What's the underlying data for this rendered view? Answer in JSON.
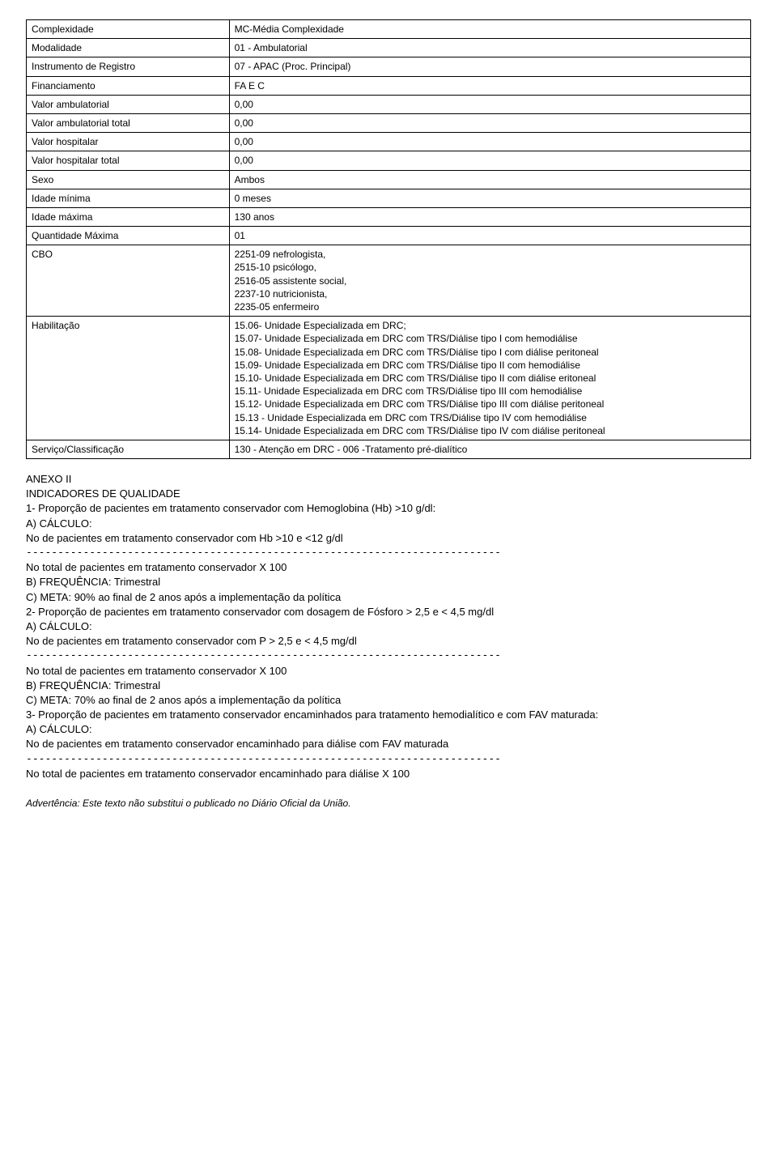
{
  "table": {
    "rows": [
      {
        "label": "Complexidade",
        "value": "MC-Média Complexidade"
      },
      {
        "label": "Modalidade",
        "value": "01 - Ambulatorial"
      },
      {
        "label": "Instrumento de Registro",
        "value": "07 - APAC (Proc. Principal)"
      },
      {
        "label": "Financiamento",
        "value": "FA E C"
      },
      {
        "label": "Valor ambulatorial",
        "value": "0,00"
      },
      {
        "label": "Valor ambulatorial total",
        "value": "0,00"
      },
      {
        "label": "Valor hospitalar",
        "value": "0,00"
      },
      {
        "label": "Valor hospitalar total",
        "value": "0,00"
      },
      {
        "label": "Sexo",
        "value": "Ambos"
      },
      {
        "label": "Idade mínima",
        "value": "0 meses"
      },
      {
        "label": "Idade máxima",
        "value": "130 anos"
      },
      {
        "label": "Quantidade Máxima",
        "value": "01"
      },
      {
        "label": "CBO",
        "value": "2251-09 nefrologista,\n2515-10 psicólogo,\n2516-05 assistente social,\n2237-10 nutricionista,\n2235-05 enfermeiro"
      },
      {
        "label": "Habilitação",
        "value": "15.06- Unidade Especializada em DRC;\n15.07- Unidade Especializada em DRC com TRS/Diálise tipo I com hemodiálise\n15.08- Unidade Especializada em DRC com TRS/Diálise tipo I com diálise peritoneal\n15.09- Unidade Especializada em DRC com TRS/Diálise tipo II com hemodiálise\n15.10- Unidade Especializada em DRC com TRS/Diálise tipo II com diálise eritoneal\n15.11- Unidade Especializada em DRC com TRS/Diálise tipo III com hemodiálise\n15.12- Unidade Especializada em DRC com TRS/Diálise tipo III com diálise peritoneal\n15.13 - Unidade Especializada em DRC com TRS/Diálise tipo IV com hemodiálise\n15.14- Unidade Especializada em DRC com TRS/Diálise tipo IV com diálise peritoneal",
        "justify": true
      },
      {
        "label": "Serviço/Classificação",
        "value": "130 - Atenção em DRC - 006 -Tratamento pré-dialítico"
      }
    ]
  },
  "body": {
    "anexo": "ANEXO II",
    "title": "INDICADORES DE QUALIDADE",
    "item1_title": "1- Proporção de pacientes em tratamento conservador com Hemoglobina (Hb) >10 g/dl:",
    "a_calc": "A) CÁLCULO:",
    "item1_num": "No de pacientes em tratamento conservador com Hb >10 e <12 g/dl",
    "dashes": "---------------------------------------------------------------------------",
    "item1_den": "No total de pacientes em tratamento conservador X 100",
    "b_freq": "B) FREQUÊNCIA: Trimestral",
    "item1_meta": "C) META: 90% ao final de 2 anos após a implementação da política",
    "item2_title": "2- Proporção de pacientes em tratamento conservador com dosagem de Fósforo > 2,5 e < 4,5 mg/dl",
    "item2_num": "No de pacientes em tratamento conservador com P > 2,5 e < 4,5 mg/dl",
    "item2_den": "No total de pacientes em tratamento conservador X 100",
    "item2_meta": "C) META: 70% ao final de 2 anos após a implementação da política",
    "item3_title": "3- Proporção de pacientes em tratamento conservador encaminhados para tratamento hemodialítico e com FAV maturada:",
    "item3_num": "No de pacientes em tratamento conservador encaminhado para diálise com FAV maturada",
    "item3_den": "No total de pacientes em tratamento conservador encaminhado para diálise X 100"
  },
  "footer": "Advertência: Este texto não substitui o publicado no Diário Oficial da União."
}
